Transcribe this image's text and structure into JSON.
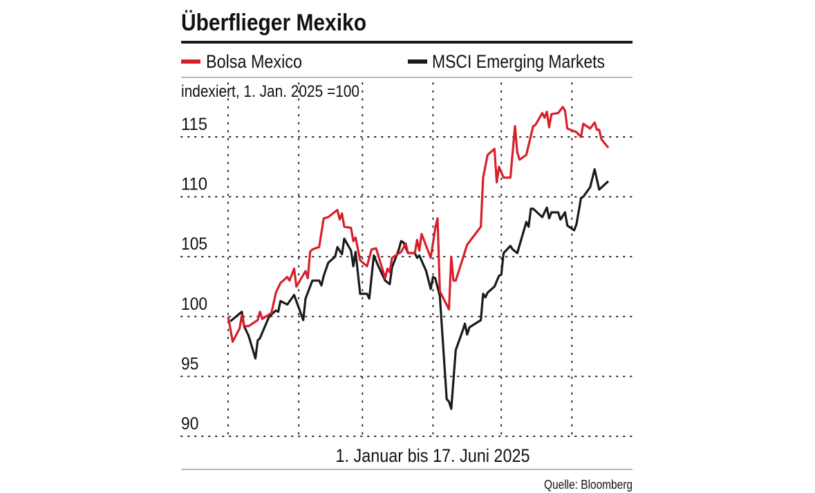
{
  "chart_data": {
    "type": "line",
    "title": "Überflieger Mexiko",
    "subtitle": "indexiert, 1. Jan. 2025 =100",
    "xlabel": "1. Januar bis 17. Juni 2025",
    "ylabel": "",
    "source": "Quelle: Bloomberg",
    "xlim": [
      "2025-01-01",
      "2025-06-17"
    ],
    "ylim": [
      90,
      118
    ],
    "yticks": [
      "90",
      "95",
      "100",
      "105",
      "110",
      "115"
    ],
    "grid": true,
    "legend_position": "top",
    "series": [
      {
        "name": "Bolsa Mexico",
        "color": "#d71f2b",
        "points": [
          [
            "2025-01-01",
            100.0
          ],
          [
            "2025-01-03",
            97.9
          ],
          [
            "2025-01-06",
            99.0
          ],
          [
            "2025-01-07",
            100.1
          ],
          [
            "2025-01-08",
            99.2
          ],
          [
            "2025-01-10",
            99.2
          ],
          [
            "2025-01-14",
            99.7
          ],
          [
            "2025-01-15",
            100.4
          ],
          [
            "2025-01-16",
            99.8
          ],
          [
            "2025-01-20",
            100.3
          ],
          [
            "2025-01-22",
            102.0
          ],
          [
            "2025-01-24",
            102.8
          ],
          [
            "2025-01-27",
            103.3
          ],
          [
            "2025-01-28",
            103.0
          ],
          [
            "2025-01-30",
            104.0
          ],
          [
            "2025-01-31",
            102.5
          ],
          [
            "2025-02-04",
            103.8
          ],
          [
            "2025-02-05",
            103.2
          ],
          [
            "2025-02-06",
            105.4
          ],
          [
            "2025-02-07",
            105.6
          ],
          [
            "2025-02-10",
            105.8
          ],
          [
            "2025-02-12",
            108.2
          ],
          [
            "2025-02-14",
            108.3
          ],
          [
            "2025-02-16",
            108.6
          ],
          [
            "2025-02-18",
            108.9
          ],
          [
            "2025-02-19",
            108.1
          ],
          [
            "2025-02-20",
            108.6
          ],
          [
            "2025-02-21",
            107.5
          ],
          [
            "2025-02-24",
            107.4
          ],
          [
            "2025-02-25",
            106.3
          ],
          [
            "2025-02-26",
            106.6
          ],
          [
            "2025-02-28",
            104.7
          ],
          [
            "2025-03-03",
            104.2
          ],
          [
            "2025-03-05",
            105.6
          ],
          [
            "2025-03-07",
            105.7
          ],
          [
            "2025-03-11",
            103.2
          ],
          [
            "2025-03-12",
            104.0
          ],
          [
            "2025-03-13",
            103.7
          ],
          [
            "2025-03-14",
            104.9
          ],
          [
            "2025-03-18",
            105.4
          ],
          [
            "2025-03-20",
            106.1
          ],
          [
            "2025-03-21",
            105.3
          ],
          [
            "2025-03-24",
            105.3
          ],
          [
            "2025-03-25",
            106.4
          ],
          [
            "2025-03-26",
            105.5
          ],
          [
            "2025-03-27",
            106.9
          ],
          [
            "2025-03-31",
            104.9
          ],
          [
            "2025-04-02",
            107.4
          ],
          [
            "2025-04-03",
            108.2
          ],
          [
            "2025-04-04",
            102.1
          ],
          [
            "2025-04-08",
            100.6
          ],
          [
            "2025-04-09",
            105.0
          ],
          [
            "2025-04-10",
            103.0
          ],
          [
            "2025-04-11",
            103.0
          ],
          [
            "2025-04-16",
            106.0
          ],
          [
            "2025-04-22",
            107.5
          ],
          [
            "2025-04-23",
            111.6
          ],
          [
            "2025-04-25",
            113.5
          ],
          [
            "2025-04-28",
            114.0
          ],
          [
            "2025-04-29",
            111.2
          ],
          [
            "2025-04-30",
            112.5
          ],
          [
            "2025-05-02",
            111.6
          ],
          [
            "2025-05-05",
            111.6
          ],
          [
            "2025-05-07",
            115.9
          ],
          [
            "2025-05-08",
            113.7
          ],
          [
            "2025-05-09",
            113.1
          ],
          [
            "2025-05-12",
            113.5
          ],
          [
            "2025-05-15",
            115.9
          ],
          [
            "2025-05-16",
            116.0
          ],
          [
            "2025-05-19",
            117.0
          ],
          [
            "2025-05-20",
            116.6
          ],
          [
            "2025-05-21",
            117.1
          ],
          [
            "2025-05-22",
            115.8
          ],
          [
            "2025-05-23",
            116.9
          ],
          [
            "2025-05-26",
            117.0
          ],
          [
            "2025-05-28",
            117.5
          ],
          [
            "2025-05-29",
            117.2
          ],
          [
            "2025-05-30",
            115.7
          ],
          [
            "2025-06-03",
            115.4
          ],
          [
            "2025-06-05",
            115.0
          ],
          [
            "2025-06-06",
            116.1
          ],
          [
            "2025-06-09",
            115.7
          ],
          [
            "2025-06-11",
            116.2
          ],
          [
            "2025-06-12",
            115.6
          ],
          [
            "2025-06-13",
            115.6
          ],
          [
            "2025-06-14",
            114.8
          ],
          [
            "2025-06-17",
            114.1
          ]
        ]
      },
      {
        "name": "MSCI Emerging Markets",
        "color": "#1a1a1a",
        "points": [
          [
            "2025-01-02",
            99.6
          ],
          [
            "2025-01-07",
            100.4
          ],
          [
            "2025-01-08",
            99.2
          ],
          [
            "2025-01-10",
            98.4
          ],
          [
            "2025-01-13",
            96.5
          ],
          [
            "2025-01-14",
            98.0
          ],
          [
            "2025-01-15",
            98.2
          ],
          [
            "2025-01-17",
            99.1
          ],
          [
            "2025-01-19",
            100.0
          ],
          [
            "2025-01-22",
            100.5
          ],
          [
            "2025-01-23",
            100.4
          ],
          [
            "2025-01-24",
            101.3
          ],
          [
            "2025-01-27",
            101.0
          ],
          [
            "2025-01-30",
            101.8
          ],
          [
            "2025-02-03",
            99.7
          ],
          [
            "2025-02-04",
            101.5
          ],
          [
            "2025-02-07",
            103.0
          ],
          [
            "2025-02-10",
            103.0
          ],
          [
            "2025-02-11",
            102.6
          ],
          [
            "2025-02-12",
            103.4
          ],
          [
            "2025-02-14",
            104.5
          ],
          [
            "2025-02-17",
            105.0
          ],
          [
            "2025-02-18",
            105.8
          ],
          [
            "2025-02-20",
            105.2
          ],
          [
            "2025-02-21",
            106.5
          ],
          [
            "2025-02-24",
            105.5
          ],
          [
            "2025-02-25",
            104.2
          ],
          [
            "2025-02-26",
            105.4
          ],
          [
            "2025-02-28",
            101.9
          ],
          [
            "2025-03-03",
            101.9
          ],
          [
            "2025-03-04",
            101.5
          ],
          [
            "2025-03-06",
            105.1
          ],
          [
            "2025-03-08",
            104.2
          ],
          [
            "2025-03-11",
            103.0
          ],
          [
            "2025-03-13",
            102.7
          ],
          [
            "2025-03-14",
            104.1
          ],
          [
            "2025-03-17",
            105.6
          ],
          [
            "2025-03-18",
            106.3
          ],
          [
            "2025-03-19",
            106.2
          ],
          [
            "2025-03-21",
            105.3
          ],
          [
            "2025-03-24",
            105.3
          ],
          [
            "2025-03-25",
            104.9
          ],
          [
            "2025-03-26",
            105.1
          ],
          [
            "2025-03-29",
            103.8
          ],
          [
            "2025-03-31",
            102.3
          ],
          [
            "2025-04-01",
            103.3
          ],
          [
            "2025-04-02",
            103.2
          ],
          [
            "2025-04-04",
            101.7
          ],
          [
            "2025-04-07",
            93.1
          ],
          [
            "2025-04-08",
            92.9
          ],
          [
            "2025-04-09",
            92.3
          ],
          [
            "2025-04-11",
            97.2
          ],
          [
            "2025-04-14",
            98.8
          ],
          [
            "2025-04-15",
            99.4
          ],
          [
            "2025-04-16",
            98.5
          ],
          [
            "2025-04-17",
            99.1
          ],
          [
            "2025-04-22",
            99.7
          ],
          [
            "2025-04-23",
            101.9
          ],
          [
            "2025-04-24",
            101.6
          ],
          [
            "2025-04-25",
            102.0
          ],
          [
            "2025-04-28",
            102.5
          ],
          [
            "2025-04-30",
            103.4
          ],
          [
            "2025-05-01",
            103.5
          ],
          [
            "2025-05-02",
            105.3
          ],
          [
            "2025-05-05",
            105.9
          ],
          [
            "2025-05-06",
            105.6
          ],
          [
            "2025-05-08",
            105.3
          ],
          [
            "2025-05-12",
            107.9
          ],
          [
            "2025-05-13",
            107.5
          ],
          [
            "2025-05-14",
            109.0
          ],
          [
            "2025-05-15",
            109.0
          ],
          [
            "2025-05-19",
            108.3
          ],
          [
            "2025-05-21",
            109.1
          ],
          [
            "2025-05-22",
            108.2
          ],
          [
            "2025-05-23",
            108.7
          ],
          [
            "2025-05-26",
            108.7
          ],
          [
            "2025-05-27",
            108.1
          ],
          [
            "2025-05-29",
            108.7
          ],
          [
            "2025-05-30",
            107.6
          ],
          [
            "2025-06-02",
            107.2
          ],
          [
            "2025-06-03",
            107.7
          ],
          [
            "2025-06-05",
            109.9
          ],
          [
            "2025-06-06",
            110.0
          ],
          [
            "2025-06-09",
            110.8
          ],
          [
            "2025-06-11",
            112.3
          ],
          [
            "2025-06-13",
            110.6
          ],
          [
            "2025-06-17",
            111.3
          ]
        ]
      }
    ]
  }
}
